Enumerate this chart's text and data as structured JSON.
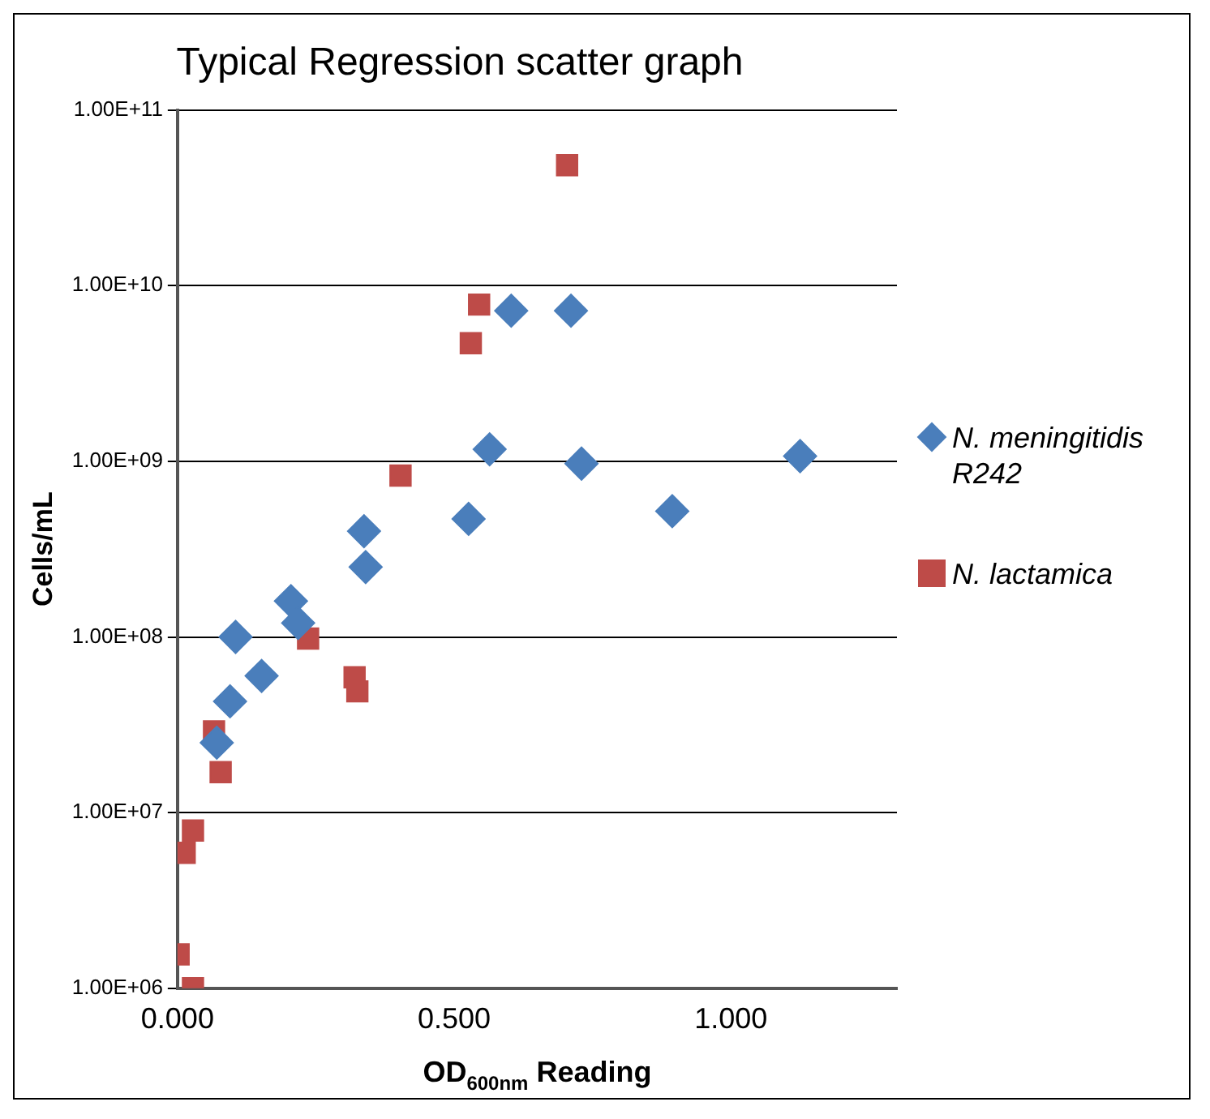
{
  "chart_data": {
    "type": "scatter",
    "title": "Typical Regression scatter graph",
    "xlabel": "OD$_{600nm}$ Reading",
    "ylabel": "Cells/mL",
    "log": "y",
    "grid": "y",
    "legend": "right",
    "xlim": [
      0,
      1.3
    ],
    "xticks": [
      {
        "value": 0,
        "label": "0.000"
      },
      {
        "value": 0.5,
        "label": "0.500"
      },
      {
        "value": 1,
        "label": "1.000"
      }
    ],
    "ylim": [
      1000000,
      100000000000
    ],
    "yticks": [
      {
        "value": 1000000,
        "label": "1.00E+06"
      },
      {
        "value": 10000000,
        "label": "1.00E+07"
      },
      {
        "value": 100000000,
        "label": "1.00E+08"
      },
      {
        "value": 1000000000,
        "label": "1.00E+09"
      },
      {
        "value": 10000000000,
        "label": "1.00E+10"
      },
      {
        "value": 100000000000,
        "label": "1.00E+11"
      }
    ],
    "series": [
      {
        "name": "N. meningitidis R242",
        "color": "#4a7ebb",
        "marker": "diamond",
        "x": [
          0.603,
          0.711,
          0.564,
          0.73,
          1.125,
          0.526,
          0.894,
          0.337,
          0.34,
          0.205,
          0.218,
          0.105,
          0.152,
          0.095,
          0.071
        ],
        "values": [
          7200000000,
          7200000000,
          1170000000,
          970000000,
          1070000000,
          470000000,
          520000000,
          400000000,
          250000000,
          160000000,
          120000000,
          100000000,
          60000000,
          43000000,
          25000000
        ]
      },
      {
        "name": "N. lactamica",
        "color": "#be4b48",
        "marker": "square",
        "x": [
          0.704,
          0.545,
          0.53,
          0.403,
          0.236,
          0.32,
          0.325,
          0.066,
          0.078,
          0.028,
          0.013,
          0.002,
          0.028
        ],
        "values": [
          48500000000,
          7800000000,
          4700000000,
          830000000,
          98000000,
          59000000,
          49000000,
          29000000,
          17000000,
          7900000,
          5900000,
          1560000,
          1000000
        ]
      }
    ]
  }
}
